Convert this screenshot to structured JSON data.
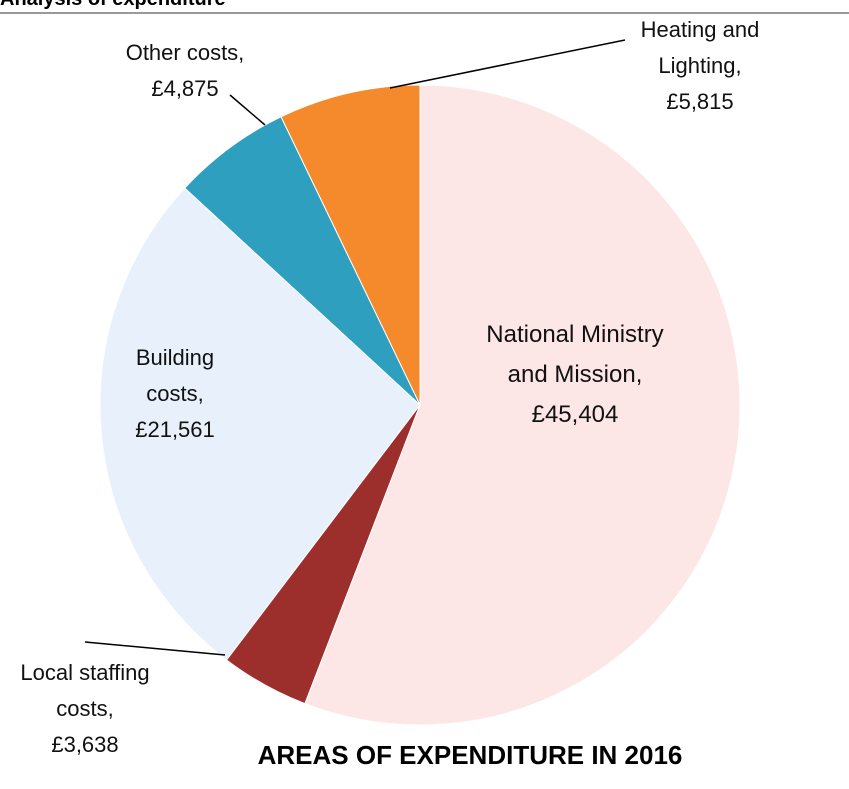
{
  "heading": "Analysis of expenditure",
  "chart_data": {
    "type": "pie",
    "title": "AREAS OF EXPENDITURE IN 2016",
    "categories": [
      "National Ministry and Mission,",
      "Local staffing costs,",
      "Building costs,",
      "Other costs,",
      "Heating and Lighting,"
    ],
    "values": [
      45404,
      3638,
      21561,
      4875,
      5815
    ],
    "value_labels": [
      "£45,404",
      "£3,638",
      "£21,561",
      "£4,875",
      "£5,815"
    ],
    "colors": [
      "#fde6e6",
      "#9c2f2b",
      "#e8f1fb",
      "#2f9fbf",
      "#f58a2d"
    ]
  }
}
